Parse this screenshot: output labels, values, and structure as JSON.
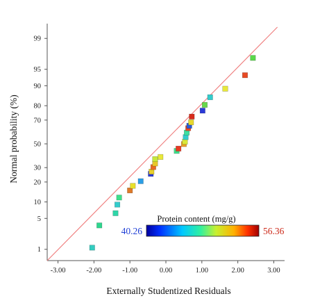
{
  "chart_data": {
    "type": "scatter",
    "title": "",
    "xlabel": "Externally Studentized Residuals",
    "ylabel": "Normal probability (%)",
    "xlim": [
      -3.3,
      3.3
    ],
    "x_ticks": [
      "-3.00",
      "-2.00",
      "-1.00",
      "0.00",
      "1.00",
      "2.00",
      "3.00"
    ],
    "x_tick_values": [
      -3,
      -2,
      -1,
      0,
      1,
      2,
      3
    ],
    "y_scale": "normal-probability",
    "ylim": [
      0.5,
      99.6
    ],
    "y_ticks": [
      "1",
      "5",
      "10",
      "20",
      "30",
      "50",
      "70",
      "80",
      "90",
      "95",
      "99"
    ],
    "y_tick_values": [
      1,
      5,
      10,
      20,
      30,
      50,
      70,
      80,
      90,
      95,
      99
    ],
    "grid": false,
    "reference_line": {
      "color": "#ef7b7b",
      "points": [
        [
          -3.3,
          0.5
        ],
        [
          3.1,
          99.5
        ]
      ]
    },
    "colorbar": {
      "title": "Protein content (mg/g)",
      "min_label": "40.26",
      "max_label": "56.36",
      "min_color": "#1f3fd6",
      "max_color": "#cc2a1a",
      "placement": "lower-right"
    },
    "points": [
      {
        "x": -2.05,
        "y": 1.1,
        "color": "#33ccc0"
      },
      {
        "x": -1.85,
        "y": 3.6,
        "color": "#2ed68e"
      },
      {
        "x": -1.4,
        "y": 6.3,
        "color": "#2ed6a8"
      },
      {
        "x": -1.35,
        "y": 9.0,
        "color": "#33cccc"
      },
      {
        "x": -1.3,
        "y": 11.8,
        "color": "#3ee08a"
      },
      {
        "x": -1.0,
        "y": 15.2,
        "color": "#e07a28"
      },
      {
        "x": -0.92,
        "y": 17.7,
        "color": "#e8e02a"
      },
      {
        "x": -0.7,
        "y": 20.5,
        "color": "#2a9ee6"
      },
      {
        "x": -0.42,
        "y": 25.4,
        "color": "#2a3ad8"
      },
      {
        "x": -0.4,
        "y": 27.0,
        "color": "#e8d02e"
      },
      {
        "x": -0.35,
        "y": 30.4,
        "color": "#e86a24"
      },
      {
        "x": -0.3,
        "y": 33.2,
        "color": "#e8c82a"
      },
      {
        "x": -0.3,
        "y": 36.8,
        "color": "#c8e83a"
      },
      {
        "x": -0.15,
        "y": 38.6,
        "color": "#e8e83a"
      },
      {
        "x": 0.3,
        "y": 43.8,
        "color": "#3ee08a"
      },
      {
        "x": 0.35,
        "y": 45.8,
        "color": "#e83a24"
      },
      {
        "x": 0.5,
        "y": 49.8,
        "color": "#e8a028"
      },
      {
        "x": 0.53,
        "y": 51.9,
        "color": "#d8e83a"
      },
      {
        "x": 0.55,
        "y": 55.9,
        "color": "#33cccc"
      },
      {
        "x": 0.58,
        "y": 59.8,
        "color": "#3ee0a0"
      },
      {
        "x": 0.62,
        "y": 63.5,
        "color": "#e84a24"
      },
      {
        "x": 0.65,
        "y": 65.5,
        "color": "#2a5ad8"
      },
      {
        "x": 0.7,
        "y": 68.2,
        "color": "#e8d82e"
      },
      {
        "x": 0.72,
        "y": 72.6,
        "color": "#d82a1a"
      },
      {
        "x": 1.02,
        "y": 76.8,
        "color": "#2a3ad8"
      },
      {
        "x": 1.08,
        "y": 80.5,
        "color": "#6ad84a"
      },
      {
        "x": 1.23,
        "y": 84.8,
        "color": "#33cccc"
      },
      {
        "x": 1.65,
        "y": 88.8,
        "color": "#e8e83a"
      },
      {
        "x": 2.2,
        "y": 93.5,
        "color": "#e84a24"
      },
      {
        "x": 2.42,
        "y": 97.1,
        "color": "#5ad84a"
      }
    ]
  }
}
